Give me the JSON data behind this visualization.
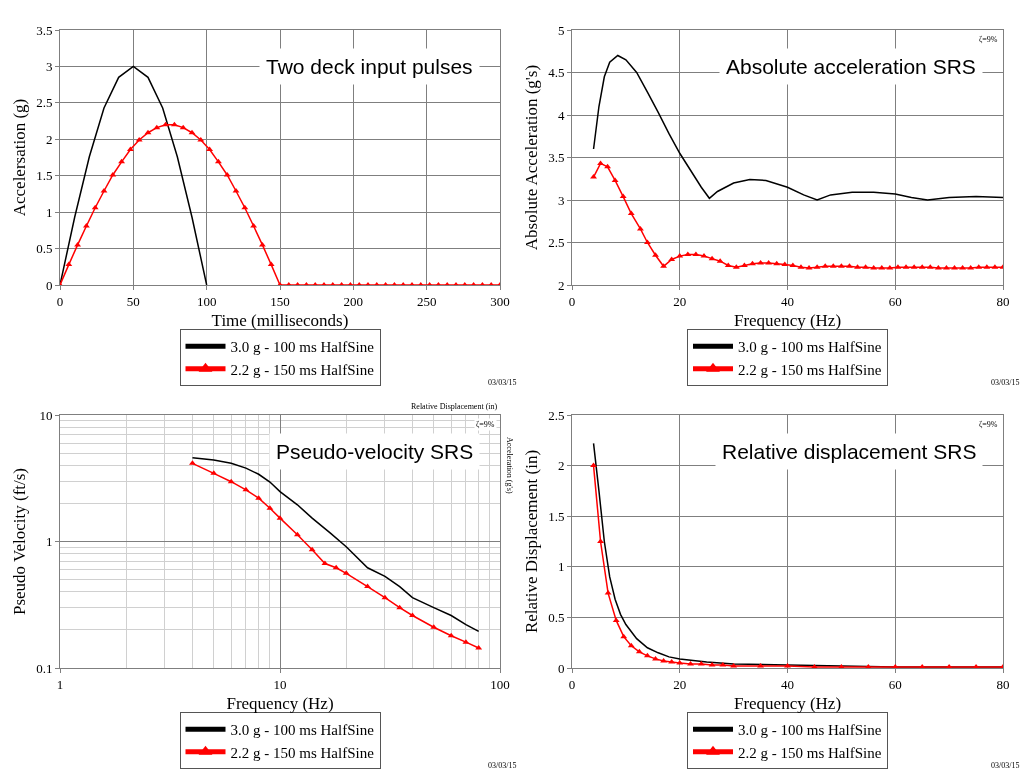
{
  "chart_data": [
    {
      "type": "line",
      "title": "Two deck input pulses",
      "xlabel": "Time (milliseconds)",
      "ylabel": "Accelersation (g)",
      "xlim": [
        0,
        300
      ],
      "xticks": [
        0,
        50,
        100,
        150,
        200,
        250,
        300
      ],
      "ylim": [
        0,
        3.5
      ],
      "yticks": [
        0,
        0.5,
        1,
        1.5,
        2,
        2.5,
        3,
        3.5
      ],
      "grid": true,
      "legend": "bottom",
      "annotations": [
        "03/03/15"
      ],
      "series": [
        {
          "name": "3.0 g - 100 ms HalfSine",
          "color": "#000000",
          "marker": "none",
          "x": [
            0,
            10,
            20,
            30,
            40,
            50,
            60,
            70,
            80,
            90,
            100
          ],
          "values": [
            0,
            0.93,
            1.76,
            2.43,
            2.85,
            3,
            2.85,
            2.43,
            1.76,
            0.93,
            0
          ]
        },
        {
          "name": "2.2 g - 150 ms HalfSine",
          "color": "#ff0000",
          "marker": "triangle",
          "x": [
            0,
            6,
            12,
            18,
            24,
            30,
            36,
            42,
            48,
            54,
            60,
            66,
            72,
            78,
            84,
            90,
            96,
            102,
            108,
            114,
            120,
            126,
            132,
            138,
            144,
            150,
            156,
            162,
            168,
            174,
            180,
            186,
            192,
            198,
            204,
            210,
            216,
            222,
            228,
            234,
            240,
            246,
            252,
            258,
            264,
            270,
            276,
            282,
            288,
            294,
            300
          ],
          "values": [
            0,
            0.28,
            0.55,
            0.81,
            1.06,
            1.29,
            1.51,
            1.69,
            1.86,
            1.99,
            2.09,
            2.16,
            2.2,
            2.2,
            2.16,
            2.09,
            1.99,
            1.86,
            1.69,
            1.51,
            1.29,
            1.06,
            0.81,
            0.55,
            0.28,
            0,
            0,
            0,
            0,
            0,
            0,
            0,
            0,
            0,
            0,
            0,
            0,
            0,
            0,
            0,
            0,
            0,
            0,
            0,
            0,
            0,
            0,
            0,
            0,
            0,
            0
          ]
        }
      ]
    },
    {
      "type": "line",
      "title": "Absolute acceleration SRS",
      "xlabel": "Frequency (Hz)",
      "ylabel": "Absolute Acceleration (g's)",
      "xlim": [
        0,
        80
      ],
      "xticks": [
        0,
        20,
        40,
        60,
        80
      ],
      "ylim": [
        2,
        5
      ],
      "yticks": [
        2,
        2.5,
        3,
        3.5,
        4,
        4.5,
        5
      ],
      "grid": true,
      "legend": "bottom",
      "annotations": [
        "ζ=9%",
        "03/03/15"
      ],
      "series": [
        {
          "name": "3.0 g - 100 ms HalfSine",
          "color": "#000000",
          "marker": "none",
          "x": [
            4,
            5,
            6,
            7,
            8.5,
            10,
            12,
            14,
            16,
            18,
            20,
            22,
            24,
            25.5,
            27,
            30,
            33,
            36,
            40,
            43,
            45.5,
            48,
            52,
            56,
            60,
            63,
            66,
            70,
            75,
            80
          ],
          "values": [
            3.6,
            4.1,
            4.45,
            4.62,
            4.7,
            4.65,
            4.5,
            4.27,
            4.03,
            3.78,
            3.55,
            3.35,
            3.15,
            3.02,
            3.1,
            3.2,
            3.24,
            3.23,
            3.15,
            3.06,
            3.0,
            3.06,
            3.09,
            3.09,
            3.07,
            3.03,
            3.0,
            3.03,
            3.04,
            3.03
          ]
        },
        {
          "name": "2.2 g - 150 ms HalfSine",
          "color": "#ff0000",
          "marker": "triangle",
          "x": [
            4,
            5.3,
            6.6,
            8,
            9.5,
            11,
            12.7,
            14,
            15.5,
            17,
            18.5,
            20,
            21.5,
            23,
            24.5,
            26,
            27.5,
            29,
            30.5,
            32,
            33.5,
            35,
            36.5,
            38,
            39.5,
            41,
            42.5,
            44,
            45.5,
            47,
            48.5,
            50,
            51.5,
            53,
            54.5,
            56,
            57.5,
            59,
            60.5,
            62,
            63.5,
            65,
            66.5,
            68,
            69.5,
            71,
            72.5,
            74,
            75.5,
            77,
            78.5,
            80
          ],
          "values": [
            3.27,
            3.43,
            3.39,
            3.23,
            3.04,
            2.84,
            2.66,
            2.5,
            2.35,
            2.22,
            2.3,
            2.34,
            2.36,
            2.36,
            2.34,
            2.31,
            2.28,
            2.23,
            2.21,
            2.23,
            2.25,
            2.26,
            2.26,
            2.25,
            2.24,
            2.23,
            2.21,
            2.2,
            2.21,
            2.22,
            2.22,
            2.22,
            2.22,
            2.21,
            2.21,
            2.2,
            2.2,
            2.2,
            2.21,
            2.21,
            2.21,
            2.21,
            2.21,
            2.2,
            2.2,
            2.2,
            2.2,
            2.2,
            2.21,
            2.21,
            2.21,
            2.21
          ]
        }
      ]
    },
    {
      "type": "line",
      "title": "Pseudo-velocity SRS",
      "xlabel": "Frequency (Hz)",
      "ylabel": "Pseudo Velocity (ft/s)",
      "log": "xy",
      "xlim": [
        1,
        100
      ],
      "xticks": [
        1,
        10,
        100
      ],
      "ylim": [
        0.1,
        10
      ],
      "yticks": [
        0.1,
        1,
        10
      ],
      "grid": true,
      "legend": "bottom",
      "annotations": [
        "Relative Displacement (in)",
        "Acceleration (g's)",
        "ζ=9%",
        "03/03/15"
      ],
      "series": [
        {
          "name": "3.0 g - 100 ms HalfSine",
          "color": "#000000",
          "marker": "none",
          "x": [
            4,
            5,
            6,
            7,
            8,
            9,
            10,
            12,
            14,
            17,
            20,
            25,
            30,
            35,
            40,
            50,
            60,
            70,
            80
          ],
          "values": [
            4.6,
            4.4,
            4.15,
            3.8,
            3.4,
            2.95,
            2.48,
            1.95,
            1.53,
            1.16,
            0.91,
            0.62,
            0.53,
            0.44,
            0.36,
            0.3,
            0.26,
            0.22,
            0.195
          ]
        },
        {
          "name": "2.2 g - 150 ms HalfSine",
          "color": "#ff0000",
          "marker": "triangle",
          "x": [
            4,
            5,
            6,
            7,
            8,
            9,
            10,
            12,
            14,
            16,
            18,
            20,
            25,
            30,
            35,
            40,
            50,
            60,
            70,
            80
          ],
          "values": [
            4.15,
            3.46,
            2.97,
            2.56,
            2.2,
            1.83,
            1.53,
            1.13,
            0.86,
            0.67,
            0.62,
            0.56,
            0.44,
            0.36,
            0.3,
            0.26,
            0.21,
            0.18,
            0.16,
            0.144
          ]
        }
      ]
    },
    {
      "type": "line",
      "title": "Relative displacement SRS",
      "xlabel": "Frequency (Hz)",
      "ylabel": "Relative Displacement (in)",
      "xlim": [
        0,
        80
      ],
      "xticks": [
        0,
        20,
        40,
        60,
        80
      ],
      "ylim": [
        0,
        2.5
      ],
      "yticks": [
        0,
        0.5,
        1,
        1.5,
        2,
        2.5
      ],
      "grid": true,
      "legend": "bottom",
      "annotations": [
        "ζ=9%",
        "03/03/15"
      ],
      "series": [
        {
          "name": "3.0 g - 100 ms HalfSine",
          "color": "#000000",
          "marker": "none",
          "x": [
            4,
            5,
            6,
            7,
            8,
            9,
            10,
            12,
            14,
            16,
            18,
            20,
            25,
            30,
            40,
            50,
            60,
            70,
            80
          ],
          "values": [
            2.22,
            1.75,
            1.25,
            0.9,
            0.68,
            0.53,
            0.43,
            0.29,
            0.2,
            0.15,
            0.11,
            0.09,
            0.06,
            0.04,
            0.03,
            0.02,
            0.01,
            0.01,
            0.01
          ]
        },
        {
          "name": "2.2 g - 150 ms HalfSine",
          "color": "#ff0000",
          "marker": "triangle",
          "x": [
            4,
            5.3,
            6.7,
            8.2,
            9.6,
            11,
            12.5,
            14,
            15.5,
            17,
            18.5,
            20,
            22,
            24,
            26,
            28,
            30,
            35,
            40,
            45,
            50,
            55,
            60,
            65,
            70,
            75,
            80
          ],
          "values": [
            2.0,
            1.25,
            0.74,
            0.47,
            0.31,
            0.22,
            0.16,
            0.12,
            0.09,
            0.07,
            0.06,
            0.05,
            0.04,
            0.04,
            0.03,
            0.03,
            0.02,
            0.02,
            0.02,
            0.01,
            0.01,
            0.01,
            0.01,
            0.01,
            0.01,
            0.01,
            0.01
          ]
        }
      ]
    }
  ]
}
